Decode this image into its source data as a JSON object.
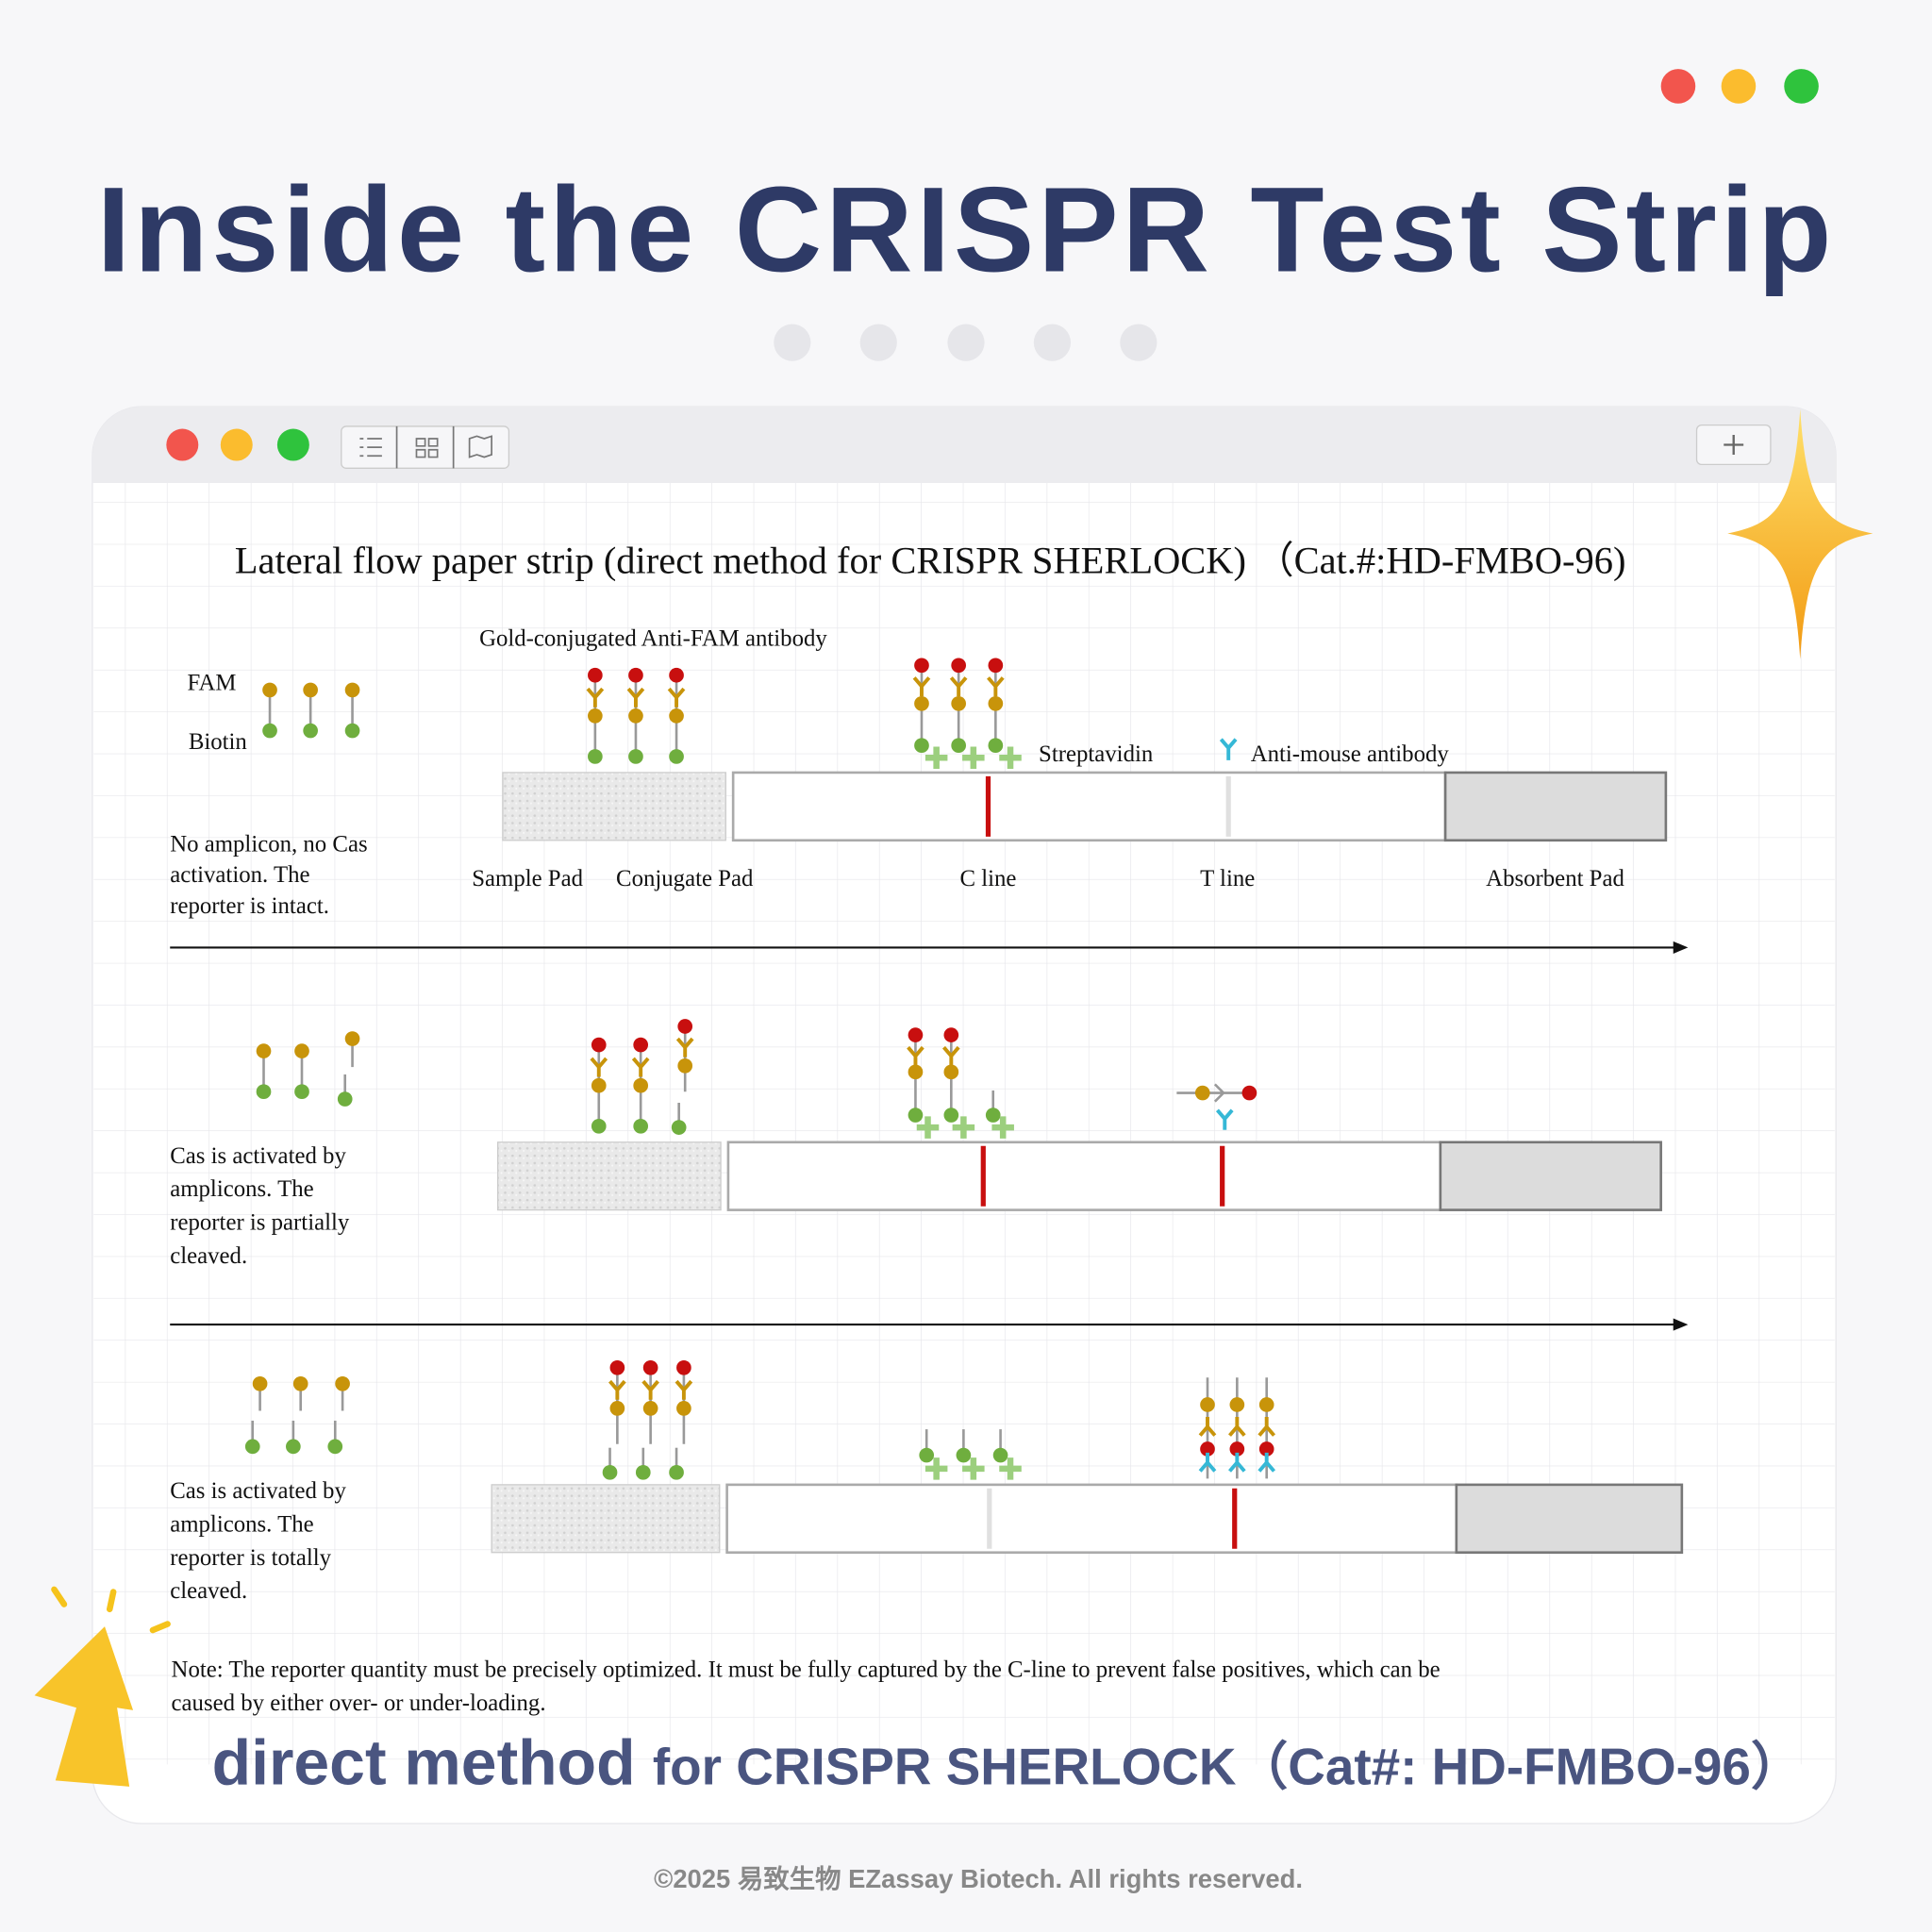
{
  "header": {
    "title": "Inside the CRISPR Test Strip"
  },
  "diagram": {
    "title": "Lateral flow paper strip (direct method for CRISPR SHERLOCK) （Cat.#:HD-FMBO-96)",
    "labels": {
      "gold": "Gold-conjugated Anti-FAM antibody",
      "fam": "FAM",
      "biotin": "Biotin",
      "streptavidin": "Streptavidin",
      "anti_mouse": "Anti-mouse antibody",
      "sample_pad": "Sample Pad",
      "conjugate_pad": "Conjugate Pad",
      "c_line": "C line",
      "t_line": "T line",
      "absorbent_pad": "Absorbent Pad"
    },
    "states": [
      [
        "No amplicon, no Cas",
        "activation. The",
        "reporter is intact."
      ],
      [
        "Cas is activated by",
        "amplicons. The",
        "reporter is partially",
        "cleaved."
      ],
      [
        "Cas is activated by",
        "amplicons. The",
        "reporter is totally",
        "cleaved."
      ]
    ],
    "note": [
      "Note: The reporter quantity must be precisely optimized. It must be fully captured by the C-line to prevent false positives, which can be",
      "caused by either over- or under-loading."
    ]
  },
  "footer": {
    "subtitle_main": "direct method",
    "subtitle_rest": "for CRISPR SHERLOCK（Cat#: HD-FMBO-96）",
    "copyright": "©2025 易致生物 EZassay Biotech. All rights reserved."
  }
}
